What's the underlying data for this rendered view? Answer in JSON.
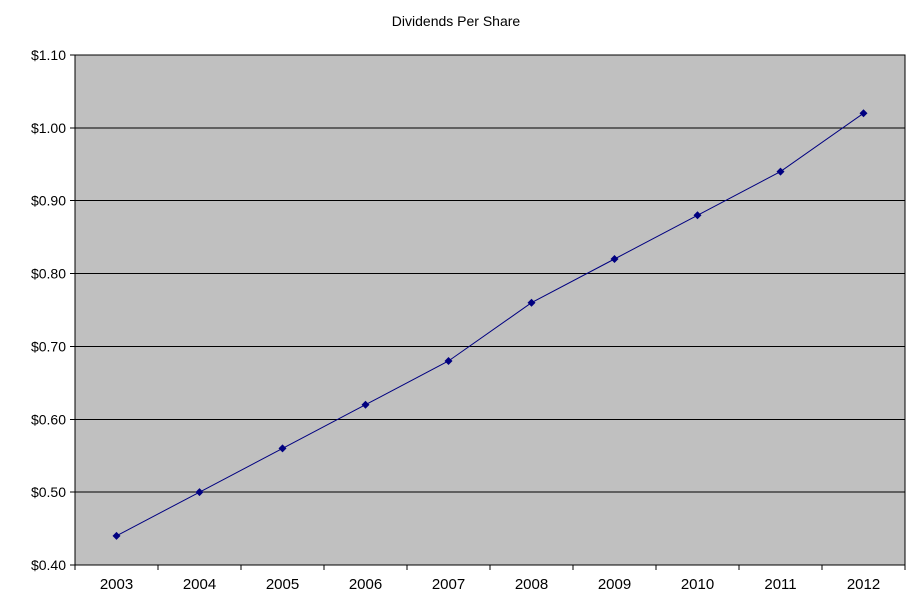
{
  "chart_data": {
    "type": "line",
    "title": "Dividends Per Share",
    "categories": [
      "2003",
      "2004",
      "2005",
      "2006",
      "2007",
      "2008",
      "2009",
      "2010",
      "2011",
      "2012"
    ],
    "series": [
      {
        "name": "Dividends Per Share",
        "values": [
          0.44,
          0.5,
          0.56,
          0.62,
          0.68,
          0.76,
          0.82,
          0.88,
          0.94,
          1.02
        ]
      }
    ],
    "xlabel": "",
    "ylabel": "",
    "ylim": [
      0.4,
      1.1
    ],
    "ytick_step": 0.1,
    "ytick_labels": [
      "$0.40",
      "$0.50",
      "$0.60",
      "$0.70",
      "$0.80",
      "$0.90",
      "$1.00",
      "$1.10"
    ],
    "grid": true,
    "legend_position": "none",
    "colors": {
      "line": "#000080",
      "marker": "#000080",
      "plot_bg": "#c0c0c0",
      "page_bg": "#ffffff",
      "grid": "#000000",
      "border": "#000000",
      "text": "#000000"
    }
  }
}
